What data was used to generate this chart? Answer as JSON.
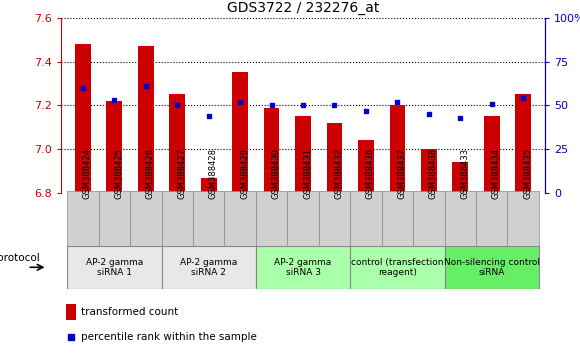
{
  "title": "GDS3722 / 232276_at",
  "samples": [
    "GSM388424",
    "GSM388425",
    "GSM388426",
    "GSM388427",
    "GSM388428",
    "GSM388429",
    "GSM388430",
    "GSM388431",
    "GSM388432",
    "GSM388436",
    "GSM388437",
    "GSM388438",
    "GSM388433",
    "GSM388434",
    "GSM388435"
  ],
  "bar_values": [
    7.48,
    7.22,
    7.47,
    7.25,
    6.87,
    7.35,
    7.19,
    7.15,
    7.12,
    7.04,
    7.2,
    7.0,
    6.94,
    7.15,
    7.25
  ],
  "dot_values": [
    60,
    53,
    61,
    50,
    44,
    52,
    50,
    50,
    50,
    47,
    52,
    45,
    43,
    51,
    54
  ],
  "ylim": [
    6.8,
    7.6
  ],
  "y2lim": [
    0,
    100
  ],
  "yticks": [
    6.8,
    7.0,
    7.2,
    7.4,
    7.6
  ],
  "y2ticks": [
    0,
    25,
    50,
    75,
    100
  ],
  "bar_color": "#cc0000",
  "dot_color": "#0000cc",
  "bar_bottom": 6.8,
  "groups": [
    {
      "label": "AP-2 gamma\nsiRNA 1",
      "indices": [
        0,
        1,
        2
      ],
      "color": "#ffffff"
    },
    {
      "label": "AP-2 gamma\nsiRNA 2",
      "indices": [
        3,
        4,
        5
      ],
      "color": "#ffffff"
    },
    {
      "label": "AP-2 gamma\nsiRNA 3",
      "indices": [
        6,
        7,
        8
      ],
      "color": "#aaffaa"
    },
    {
      "label": "control (transfection\nreagent)",
      "indices": [
        9,
        10,
        11
      ],
      "color": "#aaffaa"
    },
    {
      "label": "Non-silencing control\nsiRNA",
      "indices": [
        12,
        13,
        14
      ],
      "color": "#66ee66"
    }
  ],
  "sample_box_color": "#d0d0d0",
  "legend_bar_label": "transformed count",
  "legend_dot_label": "percentile rank within the sample",
  "protocol_label": "protocol",
  "left_axis_color": "#cc0000",
  "right_axis_color": "#0000cc"
}
